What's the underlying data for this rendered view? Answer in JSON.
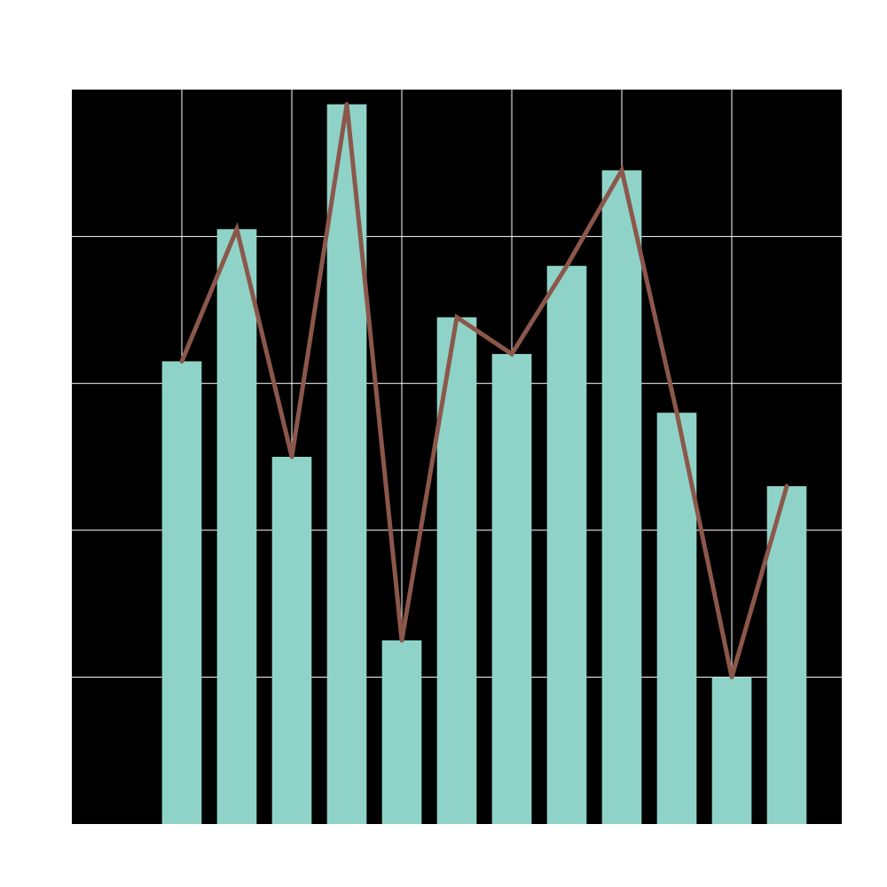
{
  "chart_data": {
    "type": "bar",
    "title": "",
    "xlabel": "",
    "ylabel": "",
    "grid": true,
    "xlim": [
      0,
      7
    ],
    "ylim": [
      0,
      5
    ],
    "x_ticks": [
      0,
      1,
      2,
      3,
      4,
      5,
      6,
      7
    ],
    "y_ticks": [
      0,
      1,
      2,
      3,
      4,
      5
    ],
    "series": [
      {
        "name": "bars",
        "kind": "bar",
        "color": "#8fd3c8",
        "x": [
          1.0,
          1.5,
          2.0,
          2.5,
          3.0,
          3.5,
          4.0,
          4.5,
          5.0,
          5.5,
          6.0,
          6.5
        ],
        "values": [
          3.15,
          4.05,
          2.5,
          4.9,
          1.25,
          3.45,
          3.2,
          3.8,
          4.45,
          2.8,
          1.0,
          2.3
        ]
      },
      {
        "name": "line",
        "kind": "line",
        "color": "#8c574b",
        "x": [
          1.0,
          1.5,
          2.0,
          2.5,
          3.0,
          3.5,
          4.0,
          4.5,
          5.0,
          5.5,
          6.0,
          6.5
        ],
        "values": [
          3.15,
          4.05,
          2.5,
          4.9,
          1.25,
          3.45,
          3.2,
          3.8,
          4.45,
          2.8,
          1.0,
          2.3
        ]
      }
    ]
  },
  "colors": {
    "plot_background": "#000000",
    "grid": "#ffffff",
    "page_background": "#ffffff"
  }
}
